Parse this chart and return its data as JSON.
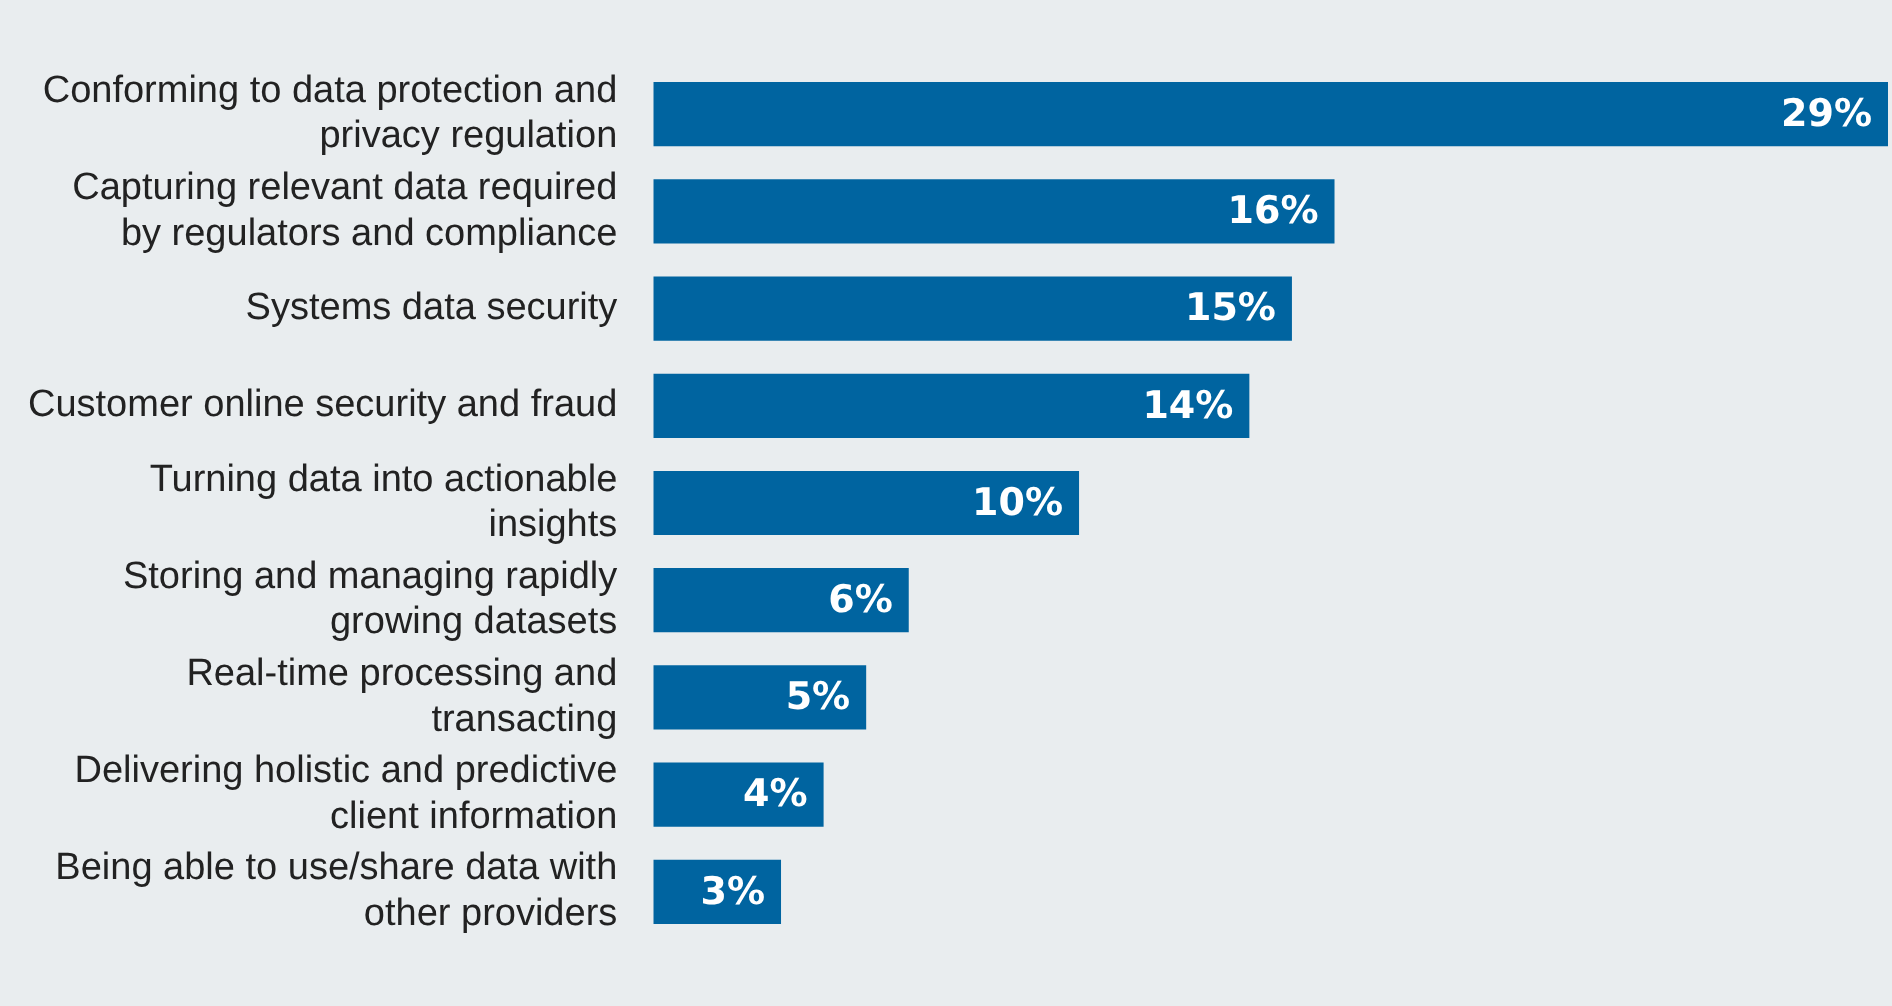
{
  "chart_data": {
    "type": "bar",
    "orientation": "horizontal",
    "categories": [
      "Conforming to data protection and privacy regulation",
      "Capturing relevant data required by regulators and compliance",
      "Systems data security",
      "Customer online security and fraud",
      "Turning data into actionable insights",
      "Storing and managing rapidly growing datasets",
      "Real-time processing and transacting",
      "Delivering holistic and predictive client information",
      "Being able to use/share data with other providers"
    ],
    "values": [
      29,
      16,
      15,
      14,
      10,
      6,
      5,
      4,
      3
    ],
    "value_labels": [
      "29%",
      "16%",
      "15%",
      "14%",
      "10%",
      "6%",
      "5%",
      "4%",
      "3%"
    ],
    "color": "#0064a0",
    "xlim": [
      0,
      29
    ],
    "grid": false,
    "legend": false,
    "tick_labels": "y"
  }
}
